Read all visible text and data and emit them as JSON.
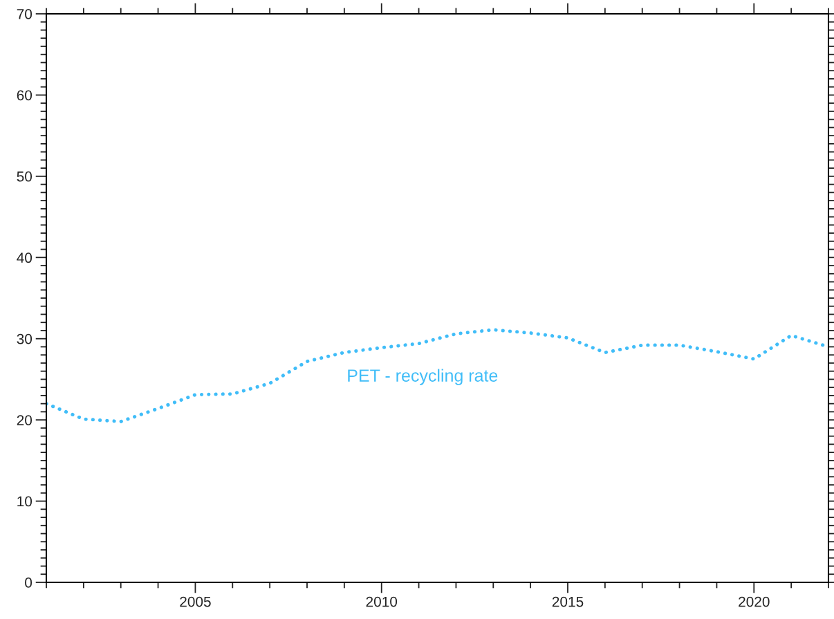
{
  "chart_data": {
    "type": "line",
    "x": [
      2001,
      2002,
      2003,
      2004,
      2005,
      2006,
      2007,
      2008,
      2009,
      2010,
      2011,
      2012,
      2013,
      2014,
      2015,
      2016,
      2017,
      2018,
      2019,
      2020,
      2021,
      2022
    ],
    "series": [
      {
        "name": "PET - recycling rate",
        "color": "#40bdf8",
        "values": [
          22.0,
          20.1,
          19.8,
          21.4,
          23.1,
          23.2,
          24.5,
          27.2,
          28.3,
          28.9,
          29.4,
          30.6,
          31.1,
          30.7,
          30.1,
          28.3,
          29.2,
          29.2,
          28.4,
          27.5,
          30.4,
          29.0
        ]
      }
    ],
    "xlim": [
      2001,
      2022
    ],
    "xticks": [
      {
        "value": 2001,
        "label": null
      },
      {
        "value": 2002,
        "label": null
      },
      {
        "value": 2003,
        "label": null
      },
      {
        "value": 2004,
        "label": null
      },
      2005,
      {
        "value": 2006,
        "label": null
      },
      {
        "value": 2007,
        "label": null
      },
      {
        "value": 2008,
        "label": null
      },
      {
        "value": 2009,
        "label": null
      },
      2010,
      {
        "value": 2011,
        "label": null
      },
      {
        "value": 2012,
        "label": null
      },
      {
        "value": 2013,
        "label": null
      },
      {
        "value": 2014,
        "label": null
      },
      2015,
      {
        "value": 2016,
        "label": null
      },
      {
        "value": 2017,
        "label": null
      },
      {
        "value": 2018,
        "label": null
      },
      {
        "value": 2019,
        "label": null
      },
      2020,
      {
        "value": 2021,
        "label": null
      },
      {
        "value": 2022,
        "label": null
      }
    ],
    "ylim": [
      0,
      70
    ],
    "yticks": [
      0,
      {
        "value": 1,
        "label": null
      },
      {
        "value": 2,
        "label": null
      },
      {
        "value": 3,
        "label": null
      },
      {
        "value": 4,
        "label": null
      },
      {
        "value": 5,
        "label": null
      },
      {
        "value": 6,
        "label": null
      },
      {
        "value": 7,
        "label": null
      },
      {
        "value": 8,
        "label": null
      },
      {
        "value": 9,
        "label": null
      },
      10,
      {
        "value": 11,
        "label": null
      },
      {
        "value": 12,
        "label": null
      },
      {
        "value": 13,
        "label": null
      },
      {
        "value": 14,
        "label": null
      },
      {
        "value": 15,
        "label": null
      },
      {
        "value": 16,
        "label": null
      },
      {
        "value": 17,
        "label": null
      },
      {
        "value": 18,
        "label": null
      },
      {
        "value": 19,
        "label": null
      },
      20,
      {
        "value": 21,
        "label": null
      },
      {
        "value": 22,
        "label": null
      },
      {
        "value": 23,
        "label": null
      },
      {
        "value": 24,
        "label": null
      },
      {
        "value": 25,
        "label": null
      },
      {
        "value": 26,
        "label": null
      },
      {
        "value": 27,
        "label": null
      },
      {
        "value": 28,
        "label": null
      },
      {
        "value": 29,
        "label": null
      },
      30,
      {
        "value": 31,
        "label": null
      },
      {
        "value": 32,
        "label": null
      },
      {
        "value": 33,
        "label": null
      },
      {
        "value": 34,
        "label": null
      },
      {
        "value": 35,
        "label": null
      },
      {
        "value": 36,
        "label": null
      },
      {
        "value": 37,
        "label": null
      },
      {
        "value": 38,
        "label": null
      },
      {
        "value": 39,
        "label": null
      },
      40,
      {
        "value": 41,
        "label": null
      },
      {
        "value": 42,
        "label": null
      },
      {
        "value": 43,
        "label": null
      },
      {
        "value": 44,
        "label": null
      },
      {
        "value": 45,
        "label": null
      },
      {
        "value": 46,
        "label": null
      },
      {
        "value": 47,
        "label": null
      },
      {
        "value": 48,
        "label": null
      },
      {
        "value": 49,
        "label": null
      },
      50,
      {
        "value": 51,
        "label": null
      },
      {
        "value": 52,
        "label": null
      },
      {
        "value": 53,
        "label": null
      },
      {
        "value": 54,
        "label": null
      },
      {
        "value": 55,
        "label": null
      },
      {
        "value": 56,
        "label": null
      },
      {
        "value": 57,
        "label": null
      },
      {
        "value": 58,
        "label": null
      },
      {
        "value": 59,
        "label": null
      },
      60,
      {
        "value": 61,
        "label": null
      },
      {
        "value": 62,
        "label": null
      },
      {
        "value": 63,
        "label": null
      },
      {
        "value": 64,
        "label": null
      },
      {
        "value": 65,
        "label": null
      },
      {
        "value": 66,
        "label": null
      },
      {
        "value": 67,
        "label": null
      },
      {
        "value": 68,
        "label": null
      },
      {
        "value": 69,
        "label": null
      },
      70
    ],
    "line_style": "dotted",
    "marker": "none",
    "grid": false,
    "legend": false
  }
}
